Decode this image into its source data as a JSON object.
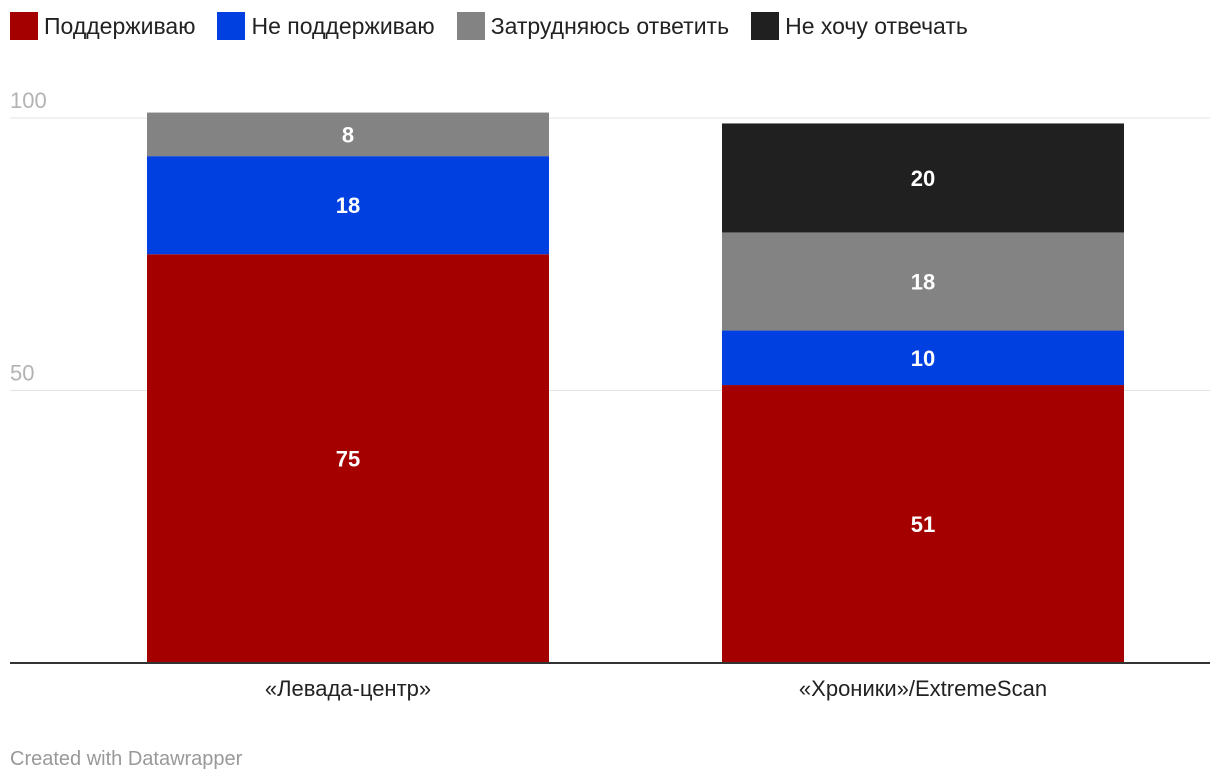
{
  "legend": {
    "items": [
      {
        "label": "Поддерживаю",
        "color": "#a50000"
      },
      {
        "label": "Не поддерживаю",
        "color": "#003fe0"
      },
      {
        "label": "Затрудняюсь ответить",
        "color": "#838383"
      },
      {
        "label": "Не хочу отвечать",
        "color": "#1f201f"
      }
    ]
  },
  "footer": {
    "credit": "Created with Datawrapper"
  },
  "chart_data": {
    "type": "bar",
    "stacked": true,
    "categories": [
      "«Левада-центр»",
      "«Хроники»/ExtremeScan"
    ],
    "series": [
      {
        "name": "Поддерживаю",
        "color": "#a50000",
        "values": [
          75,
          51
        ]
      },
      {
        "name": "Не поддерживаю",
        "color": "#003fe0",
        "values": [
          18,
          10
        ]
      },
      {
        "name": "Затрудняюсь ответить",
        "color": "#838383",
        "values": [
          8,
          18
        ]
      },
      {
        "name": "Не хочу отвечать",
        "color": "#1f201f",
        "values": [
          null,
          20
        ]
      }
    ],
    "y_ticks": [
      50,
      100
    ],
    "ylim": [
      0,
      100
    ],
    "grid": true,
    "legend_position": "top-left"
  }
}
